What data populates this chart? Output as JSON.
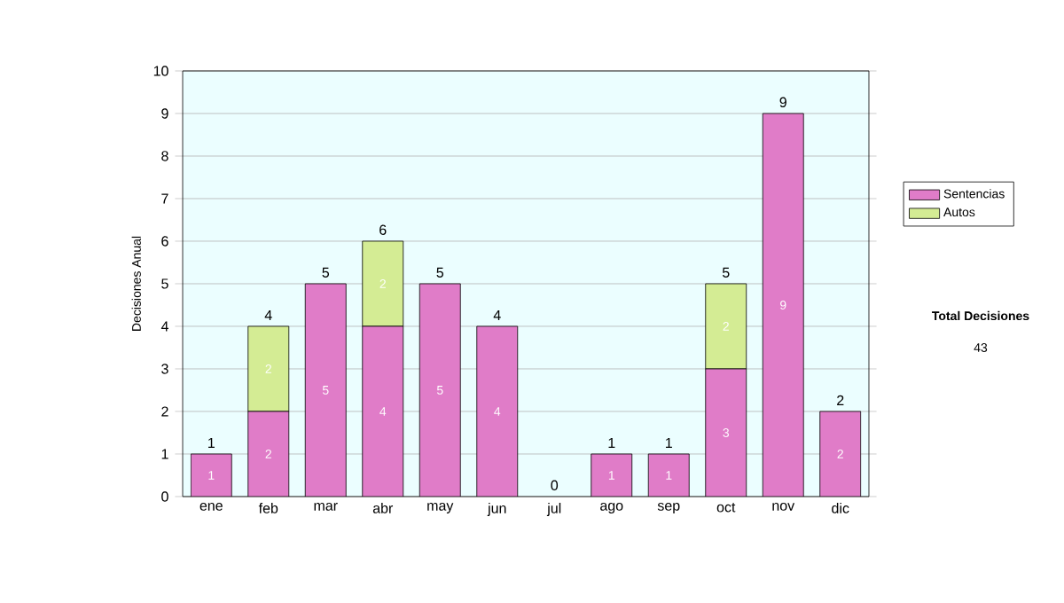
{
  "chart_data": {
    "type": "bar",
    "stacked": true,
    "ylabel": "Decisiones Anual",
    "categories": [
      "ene",
      "feb",
      "mar",
      "abr",
      "may",
      "jun",
      "jul",
      "ago",
      "sep",
      "oct",
      "nov",
      "dic"
    ],
    "series": [
      {
        "name": "Sentencias",
        "color": "#e07cc8",
        "values": [
          1,
          2,
          5,
          4,
          5,
          4,
          0,
          1,
          1,
          3,
          9,
          2
        ],
        "value_labels": [
          "1",
          "2",
          "5",
          "4",
          "5",
          "4",
          null,
          "1",
          "1",
          "3",
          "9",
          "2"
        ]
      },
      {
        "name": "Autos",
        "color": "#d4ec94",
        "values": [
          0,
          2,
          0,
          2,
          0,
          0,
          0,
          0,
          0,
          2,
          0,
          0
        ],
        "value_labels": [
          null,
          "2",
          null,
          "2",
          null,
          null,
          null,
          null,
          null,
          "2",
          null,
          null
        ]
      }
    ],
    "ylim": [
      0,
      10
    ],
    "yticks": [
      0,
      1,
      2,
      3,
      4,
      5,
      6,
      7,
      8,
      9,
      10
    ],
    "grid": "y",
    "legend": "right",
    "totals": [
      "1",
      "4",
      "5",
      "6",
      "5",
      "4",
      "0",
      "1",
      "1",
      "5",
      "9",
      "2"
    ],
    "annotations": [
      "**Total Decisiones**",
      "43"
    ]
  }
}
